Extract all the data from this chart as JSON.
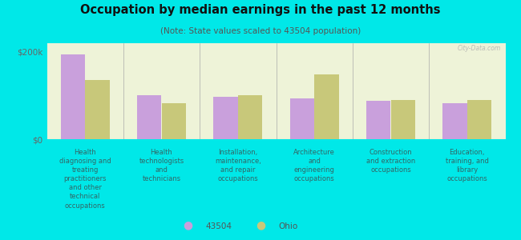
{
  "title": "Occupation by median earnings in the past 12 months",
  "subtitle": "(Note: State values scaled to 43504 population)",
  "background_color": "#00e8e8",
  "plot_bg_color": "#eef3d8",
  "categories": [
    "Health\ndiagnosing and\ntreating\npractitioners\nand other\ntechnical\noccupations",
    "Health\ntechnologists\nand\ntechnicians",
    "Installation,\nmaintenance,\nand repair\noccupations",
    "Architecture\nand\nengineering\noccupations",
    "Construction\nand extraction\noccupations",
    "Education,\ntraining, and\nlibrary\noccupations"
  ],
  "values_43504": [
    195000,
    100000,
    98000,
    93000,
    88000,
    82000
  ],
  "values_ohio": [
    135000,
    82000,
    100000,
    148000,
    90000,
    90000
  ],
  "color_43504": "#c9a0dc",
  "color_ohio": "#c8c87a",
  "yticks": [
    0,
    200000
  ],
  "ytick_labels": [
    "$0",
    "$200k"
  ],
  "ylim": [
    0,
    220000
  ],
  "legend_label_43504": "43504",
  "legend_label_ohio": "Ohio",
  "watermark": "City-Data.com"
}
